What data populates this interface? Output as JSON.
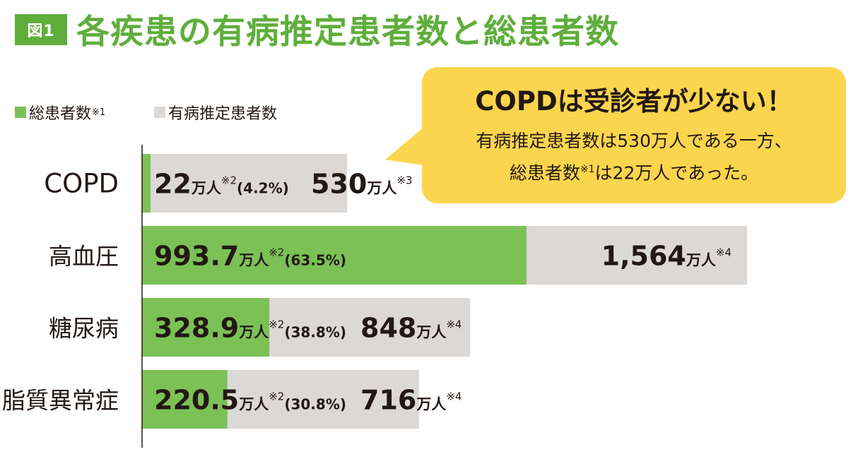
{
  "figure_label": "図1",
  "title": "各疾患の有病推定患者数と総患者数",
  "colors": {
    "total": "#7bc156",
    "estimated": "#dbd8d6",
    "accent": "#5fae3c",
    "callout": "#fbd54d"
  },
  "legend": [
    {
      "label": "総患者数",
      "note": "※1",
      "color": "#7bc156"
    },
    {
      "label": "有病推定患者数",
      "note": "",
      "color": "#dbd8d6"
    }
  ],
  "callout": {
    "headline": "COPDは受診者が少ない！",
    "line1": "有病推定患者数は530万人である一方、",
    "line2_pre": "総患者数",
    "line2_note": "※1",
    "line2_post": "は22万人であった。"
  },
  "chart_data": {
    "type": "bar",
    "orientation": "horizontal",
    "stacking": "overlay",
    "unit": "万人",
    "categories": [
      "COPD",
      "高血圧",
      "糖尿病",
      "脂質異常症"
    ],
    "series": [
      {
        "name": "総患者数",
        "values": [
          22,
          993.7,
          328.9,
          220.5
        ],
        "labels": [
          "22",
          "993.7",
          "328.9",
          "220.5"
        ],
        "notes": [
          "※2",
          "※2",
          "※2",
          "※2"
        ],
        "percents": [
          "(4.2%)",
          "(63.5%)",
          "(38.8%)",
          "(30.8%)"
        ]
      },
      {
        "name": "有病推定患者数",
        "values": [
          530,
          1564,
          848,
          716
        ],
        "labels": [
          "530",
          "1,564",
          "848",
          "716"
        ],
        "notes": [
          "※3",
          "※4",
          "※4",
          "※4"
        ]
      }
    ],
    "xlim": [
      0,
      1564
    ],
    "grid": false,
    "legend_position": "top-left"
  }
}
